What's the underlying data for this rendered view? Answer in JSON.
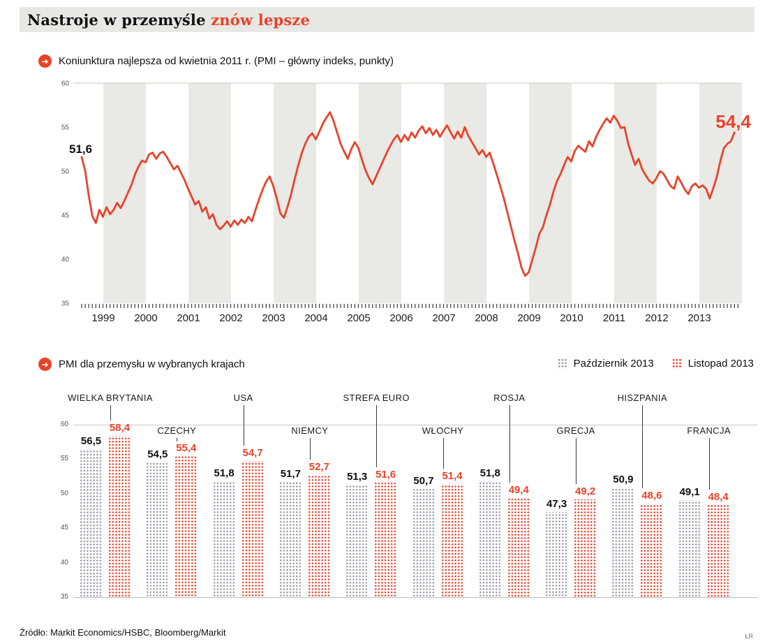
{
  "page": {
    "title_black": "Nastroje w przemyśle ",
    "title_red": "znów lepsze",
    "source": "Źródło: Markit Economics/HSBC, Bloomberg/Markit",
    "credit": "ŁR"
  },
  "icons": {
    "arrow_right": "➜"
  },
  "colors": {
    "accent": "#e8432a",
    "band": "#e9e9e6",
    "gray_dot": "#9a9aa8"
  },
  "chart_data": [
    {
      "type": "line",
      "title": "Koniunktura najlepsza od kwietnia 2011 r. (PMI – główny indeks, punkty)",
      "ylim": [
        35,
        60
      ],
      "yticks": [
        60,
        55,
        50,
        45,
        40,
        35
      ],
      "x_start": "1998-07",
      "frequency": "monthly",
      "year_labels": [
        "1999",
        "2000",
        "2001",
        "2002",
        "2003",
        "2004",
        "2005",
        "2006",
        "2007",
        "2008",
        "2009",
        "2010",
        "2011",
        "2012",
        "2013"
      ],
      "start_label": "51,6",
      "end_label": "54,4",
      "grid": "alternating-year-bands",
      "values": [
        51.6,
        50.0,
        47.2,
        44.9,
        44.1,
        45.6,
        44.8,
        45.9,
        45.1,
        45.6,
        46.4,
        45.8,
        46.6,
        47.5,
        48.4,
        49.6,
        50.5,
        51.2,
        51.0,
        51.9,
        52.1,
        51.4,
        52.0,
        52.2,
        51.6,
        50.9,
        50.2,
        50.6,
        49.8,
        49.0,
        48.0,
        47.1,
        46.2,
        46.6,
        45.4,
        45.9,
        44.6,
        45.1,
        43.9,
        43.4,
        43.8,
        44.3,
        43.7,
        44.4,
        43.9,
        44.5,
        44.1,
        44.8,
        44.3,
        45.6,
        46.8,
        47.9,
        48.8,
        49.4,
        48.3,
        46.9,
        45.2,
        44.7,
        45.9,
        47.3,
        49.0,
        50.6,
        52.0,
        53.1,
        53.9,
        54.3,
        53.6,
        54.5,
        55.4,
        56.1,
        56.7,
        55.7,
        54.4,
        53.1,
        52.2,
        51.4,
        52.5,
        53.3,
        52.6,
        51.3,
        50.1,
        49.2,
        48.5,
        49.4,
        50.3,
        51.2,
        52.1,
        52.9,
        53.6,
        54.1,
        53.3,
        54.1,
        53.5,
        54.4,
        53.8,
        54.6,
        55.1,
        54.3,
        54.9,
        54.1,
        54.7,
        53.9,
        54.6,
        55.2,
        54.4,
        53.7,
        54.5,
        53.8,
        55.0,
        54.0,
        53.3,
        52.6,
        51.9,
        52.4,
        51.6,
        52.1,
        50.9,
        49.6,
        48.3,
        46.9,
        45.3,
        43.7,
        42.1,
        40.6,
        39.0,
        38.1,
        38.5,
        39.9,
        41.3,
        42.9,
        43.6,
        45.0,
        46.2,
        47.7,
        48.9,
        49.7,
        50.7,
        51.6,
        51.1,
        52.3,
        52.9,
        52.5,
        52.2,
        53.4,
        52.8,
        53.9,
        54.7,
        55.4,
        56.0,
        55.5,
        56.3,
        55.7,
        54.9,
        55.0,
        53.2,
        51.9,
        50.7,
        51.4,
        50.2,
        49.5,
        48.9,
        48.6,
        49.2,
        50.0,
        49.7,
        49.0,
        48.3,
        48.0,
        49.4,
        48.7,
        47.9,
        47.4,
        48.3,
        48.6,
        48.1,
        48.4,
        48.0,
        46.9,
        48.0,
        49.3,
        51.1,
        52.6,
        53.1,
        53.4,
        54.4
      ]
    },
    {
      "type": "bar",
      "title": "PMI dla przemysłu w wybranych krajach",
      "ylim": [
        35,
        60
      ],
      "yticks": [
        60,
        55,
        50,
        45,
        40,
        35
      ],
      "legend": [
        {
          "label": "Październik 2013",
          "style": "gray-dots"
        },
        {
          "label": "Listopad 2013",
          "style": "red-dots"
        }
      ],
      "categories": [
        "WIELKA BRYTANIA",
        "CZECHY",
        "USA",
        "NIEMCY",
        "STREFA EURO",
        "WŁOCHY",
        "ROSJA",
        "GRECJA",
        "HISZPANIA",
        "FRANCJA"
      ],
      "label_row": [
        "high",
        "low",
        "high",
        "low",
        "high",
        "low",
        "high",
        "low",
        "high",
        "low"
      ],
      "series": [
        {
          "name": "Październik 2013",
          "values": [
            56.5,
            54.5,
            51.8,
            51.7,
            51.3,
            50.7,
            51.8,
            47.3,
            50.9,
            49.1
          ]
        },
        {
          "name": "Listopad 2013",
          "values": [
            58.4,
            55.4,
            54.7,
            52.7,
            51.6,
            51.4,
            49.4,
            49.2,
            48.6,
            48.4
          ]
        }
      ]
    }
  ]
}
